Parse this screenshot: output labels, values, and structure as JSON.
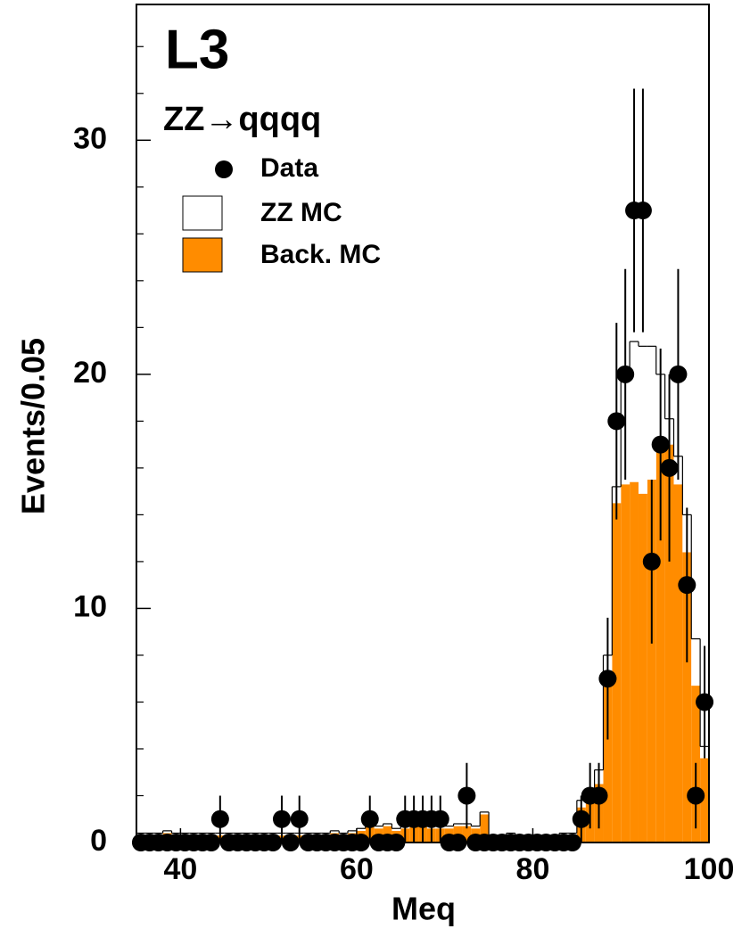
{
  "chart_data": {
    "type": "histogram",
    "title": "L3",
    "subtitle": "ZZ→qqqq",
    "x_label": "Meq",
    "y_label": "Events/0.05",
    "bins": [
      35,
      36,
      37,
      38,
      39,
      40,
      41,
      42,
      43,
      44,
      45,
      46,
      47,
      48,
      49,
      50,
      51,
      52,
      53,
      54,
      55,
      56,
      57,
      58,
      59,
      60,
      61,
      62,
      63,
      64,
      65,
      66,
      67,
      68,
      69,
      70,
      71,
      72,
      73,
      74,
      75,
      76,
      77,
      78,
      79,
      80,
      81,
      82,
      83,
      84,
      85,
      86,
      87,
      88,
      89,
      90,
      91,
      92,
      93,
      94,
      95,
      96,
      97,
      98,
      99,
      100
    ],
    "series": [
      {
        "name": "Data",
        "color": "#000000",
        "style": "points",
        "values": [
          0,
          0,
          0,
          0,
          0,
          0,
          0,
          0,
          0,
          1,
          0,
          0,
          0,
          0,
          0,
          0,
          1,
          0,
          1,
          0,
          0,
          0,
          0,
          0,
          0,
          0,
          1,
          0,
          0,
          0,
          1,
          1,
          1,
          1,
          1,
          0,
          0,
          2,
          0,
          0,
          0,
          0,
          0,
          0,
          0,
          0,
          0,
          0,
          0,
          0,
          1,
          2,
          2,
          7,
          18,
          20,
          27,
          27,
          12,
          17,
          16,
          20,
          11,
          2,
          6
        ],
        "errors": [
          0,
          0,
          0,
          0,
          0,
          0,
          0,
          0,
          0,
          1,
          0,
          0,
          0,
          0,
          0,
          0,
          1,
          0,
          1,
          0,
          0,
          0,
          0,
          0,
          0,
          0,
          1,
          0,
          0,
          0,
          1,
          1,
          1,
          1,
          1,
          0,
          0,
          1.4,
          0,
          0,
          0,
          0,
          0,
          0,
          0,
          0,
          0,
          0,
          0,
          0,
          1,
          1.4,
          1.4,
          2.6,
          4.2,
          4.5,
          5.2,
          5.2,
          3.5,
          4.1,
          4,
          4.5,
          3.3,
          1.4,
          2.4
        ]
      },
      {
        "name": "ZZ MC",
        "color": "#ffffff",
        "style": "stack",
        "values": [
          0.1,
          0.1,
          0.1,
          0.1,
          0.1,
          0.1,
          0.1,
          0.1,
          0.1,
          0.1,
          0.1,
          0.1,
          0.1,
          0.1,
          0.1,
          0.1,
          0.1,
          0.1,
          0.1,
          0.1,
          0.1,
          0.1,
          0.1,
          0.1,
          0.1,
          0.1,
          0.1,
          0.1,
          0.1,
          0.1,
          0.1,
          0.1,
          0.1,
          0.1,
          0.1,
          0.1,
          0.1,
          0.1,
          0.1,
          0.1,
          0.1,
          0.1,
          0.1,
          0.1,
          0.1,
          0.1,
          0.1,
          0.1,
          0.1,
          0.1,
          0.3,
          0.3,
          0.6,
          1.0,
          0.7,
          4.7,
          6.0,
          6.3,
          5.7,
          2.8,
          1.1,
          1.2,
          1.6,
          2.0,
          0.5
        ]
      },
      {
        "name": "Back. MC",
        "color": "#ff8c00",
        "style": "stack",
        "values": [
          0.3,
          0.3,
          0.3,
          0.4,
          0.3,
          0.3,
          0.3,
          0.3,
          0.3,
          0.3,
          0.3,
          0.3,
          0.3,
          0.3,
          0.3,
          0.3,
          0.3,
          0.3,
          0.3,
          0.3,
          0.3,
          0.3,
          0.4,
          0.3,
          0.4,
          0.5,
          0.8,
          0.6,
          0.7,
          0.5,
          0.6,
          0.7,
          0.8,
          0.6,
          0.6,
          0.6,
          0.7,
          0.7,
          0.6,
          1.2,
          0.2,
          0.2,
          0.3,
          0.2,
          0.2,
          0.2,
          0.2,
          0.2,
          0.3,
          0.3,
          1.5,
          2.0,
          2.5,
          7.0,
          14.5,
          15.3,
          15.4,
          14.9,
          15.5,
          17.2,
          17.0,
          15.3,
          12.4,
          6.7,
          3.6
        ]
      }
    ],
    "xlim": [
      35,
      100
    ],
    "xticks": [
      40,
      60,
      80,
      100
    ],
    "ylim": [
      0,
      35.8
    ],
    "yticks": [
      0,
      10,
      20,
      30
    ],
    "yminor_ticks": [
      2,
      4,
      6,
      8,
      12,
      14,
      16,
      18,
      22,
      24,
      26,
      28,
      32,
      34
    ]
  }
}
